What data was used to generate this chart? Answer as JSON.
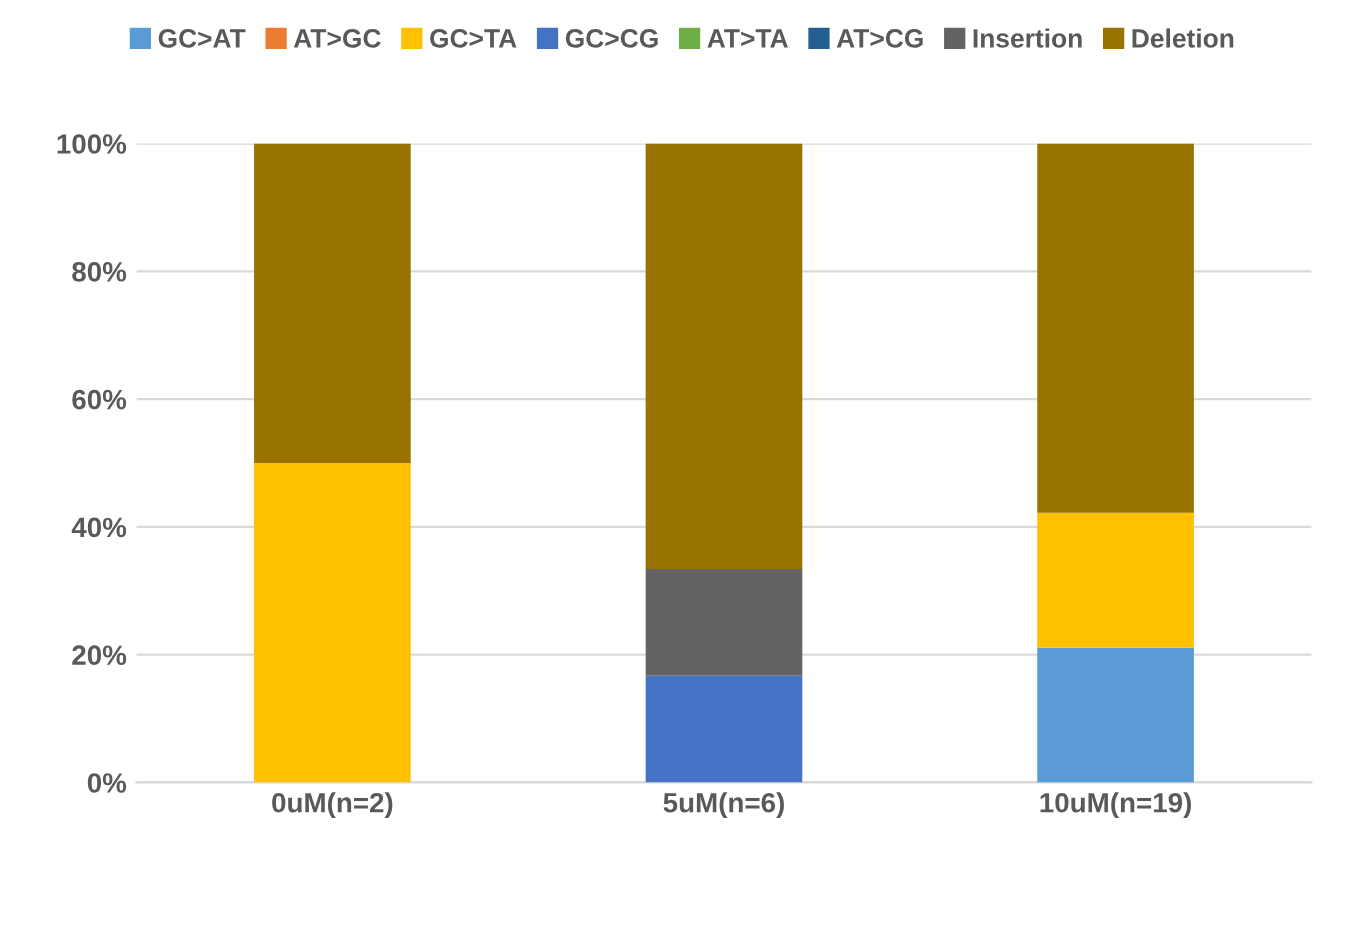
{
  "chart_data": {
    "type": "bar",
    "stacked": true,
    "categories": [
      "0uM(n=2)",
      "5uM(n=6)",
      "10uM(n=19)"
    ],
    "series": [
      {
        "name": "GC>AT",
        "color": "#5b9bd5",
        "values": [
          0,
          0,
          21.1
        ]
      },
      {
        "name": "AT>GC",
        "color": "#ed7d31",
        "values": [
          0,
          0,
          0
        ]
      },
      {
        "name": "GC>TA",
        "color": "#ffc000",
        "values": [
          50,
          0,
          21.1
        ]
      },
      {
        "name": "GC>CG",
        "color": "#4472c4",
        "values": [
          0,
          16.7,
          0
        ]
      },
      {
        "name": "AT>TA",
        "color": "#70ad47",
        "values": [
          0,
          0,
          0
        ]
      },
      {
        "name": "AT>CG",
        "color": "#255e91",
        "values": [
          0,
          0,
          0
        ]
      },
      {
        "name": "Insertion",
        "color": "#636363",
        "values": [
          0,
          16.7,
          0
        ]
      },
      {
        "name": "Deletion",
        "color": "#997300",
        "values": [
          50,
          66.6,
          57.8
        ]
      }
    ],
    "ylim": [
      0,
      100
    ],
    "yticks": [
      {
        "value": 0,
        "label": "0%"
      },
      {
        "value": 20,
        "label": "20%"
      },
      {
        "value": 40,
        "label": "40%"
      },
      {
        "value": 60,
        "label": "60%"
      },
      {
        "value": 80,
        "label": "80%"
      },
      {
        "value": 100,
        "label": "100%"
      }
    ],
    "grid": "y",
    "legend": "top"
  }
}
